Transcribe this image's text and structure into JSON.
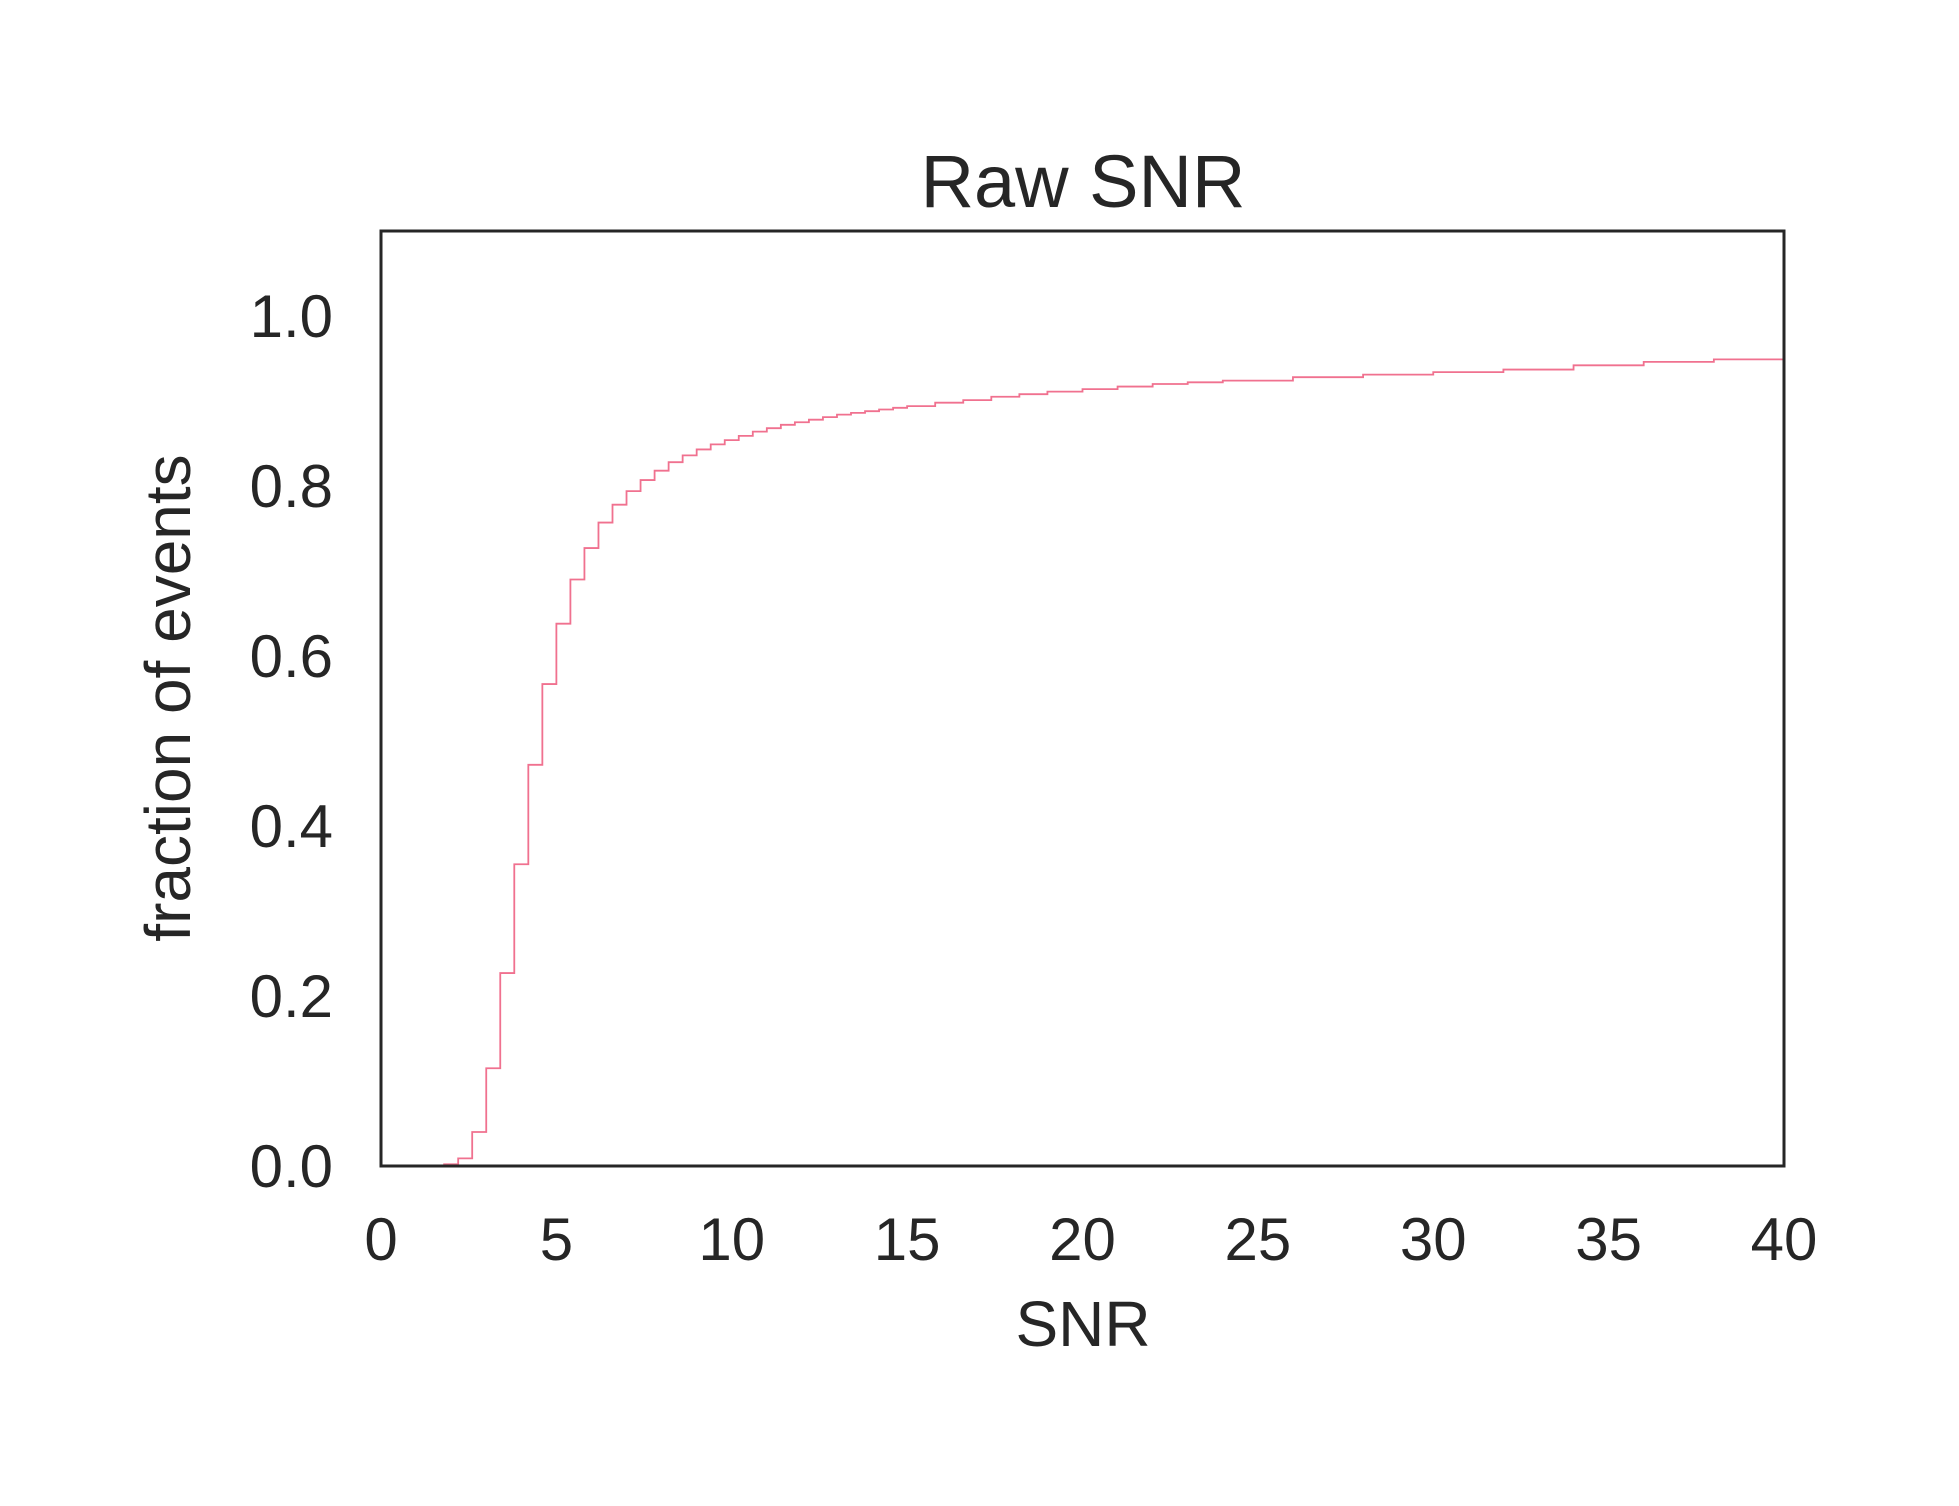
{
  "chart_data": {
    "type": "line",
    "drawstyle": "steps-post",
    "title": "Raw SNR",
    "xlabel": "SNR",
    "ylabel": "fraction of events",
    "xlim": [
      0,
      40
    ],
    "ylim": [
      0,
      1.1
    ],
    "xticks": [
      "0",
      "5",
      "10",
      "15",
      "20",
      "25",
      "30",
      "35",
      "40"
    ],
    "yticks": [
      "0.0",
      "0.2",
      "0.4",
      "0.6",
      "0.8",
      "1.0"
    ],
    "grid": false,
    "legend": "none",
    "series": [
      {
        "color": "#f0718f",
        "x": [
          0,
          1.8,
          2.2,
          2.6,
          3.0,
          3.4,
          3.8,
          4.2,
          4.6,
          5.0,
          5.4,
          5.8,
          6.2,
          6.6,
          7.0,
          7.4,
          7.8,
          8.2,
          8.6,
          9.0,
          9.4,
          9.8,
          10.2,
          10.6,
          11.0,
          11.4,
          11.8,
          12.2,
          12.6,
          13.0,
          13.4,
          13.8,
          14.2,
          14.6,
          15.0,
          15.8,
          16.6,
          17.4,
          18.2,
          19.0,
          20.0,
          21.0,
          22.0,
          23.0,
          24.0,
          26.0,
          28.0,
          30.0,
          32.0,
          34.0,
          36.0,
          38.0,
          40.0
        ],
        "y": [
          0,
          0.002,
          0.009,
          0.04,
          0.115,
          0.227,
          0.355,
          0.472,
          0.567,
          0.638,
          0.69,
          0.727,
          0.757,
          0.778,
          0.794,
          0.807,
          0.818,
          0.828,
          0.836,
          0.843,
          0.849,
          0.854,
          0.859,
          0.864,
          0.868,
          0.872,
          0.875,
          0.878,
          0.881,
          0.884,
          0.886,
          0.888,
          0.89,
          0.892,
          0.894,
          0.898,
          0.901,
          0.905,
          0.908,
          0.911,
          0.914,
          0.917,
          0.92,
          0.922,
          0.924,
          0.928,
          0.931,
          0.934,
          0.937,
          0.942,
          0.946,
          0.949,
          0.952
        ]
      }
    ]
  }
}
